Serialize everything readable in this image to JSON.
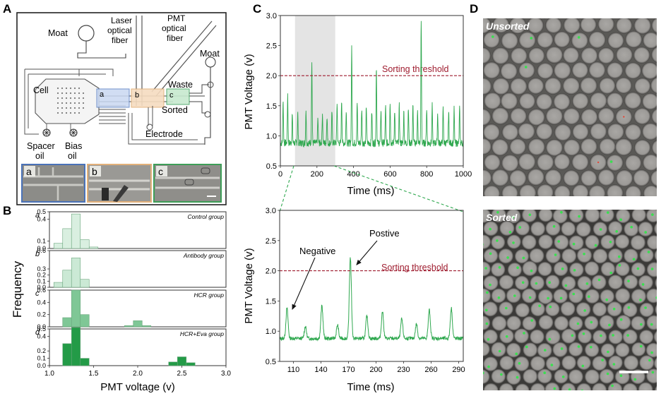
{
  "panel_letters": {
    "a": "A",
    "b": "B",
    "c": "C",
    "d": "D"
  },
  "panel_a": {
    "labels": {
      "moat_left": "Moat",
      "laser_1": "Laser",
      "laser_2": "optical",
      "laser_3": "fiber",
      "pmt_1": "PMT",
      "pmt_2": "optical",
      "pmt_3": "fiber",
      "moat_right": "Moat",
      "cell": "Cell",
      "waste": "Waste",
      "sorted": "Sorted",
      "electrode": "Electrode",
      "spacer_1": "Spacer",
      "spacer_2": "oil",
      "bias_1": "Bias",
      "bias_2": "oil",
      "region_a": "a",
      "region_b": "b",
      "region_c": "c"
    },
    "insets": [
      {
        "label": "a",
        "border_color": "#4a72b8"
      },
      {
        "label": "b",
        "border_color": "#e2b07a"
      },
      {
        "label": "c",
        "border_color": "#3e9e58"
      }
    ]
  },
  "panel_b": {
    "y_axis_label": "Frequency",
    "x_axis_label": "PMT voltage (v)",
    "x_ticks": [
      "1.0",
      "1.5",
      "2.0",
      "2.5",
      "3.0"
    ],
    "sub_letters": [
      "a",
      "b",
      "c",
      "d"
    ]
  },
  "panel_c": {
    "top_ylabel": "PMT Voltage (v)",
    "top_xlabel": "Time (ms)",
    "bottom_ylabel": "PMT Voltage (v)",
    "bottom_xlabel": "Time (ms)",
    "threshold_label": "Sorting threshold",
    "negative_label": "Negative",
    "positive_label": "Postive"
  },
  "panel_d": {
    "unsorted_label": "Unsorted",
    "sorted_label": "Sorted"
  },
  "chart_data": [
    {
      "type": "bar",
      "title": "Control group",
      "xlabel": "PMT voltage (v)",
      "ylabel": "Frequency",
      "xlim": [
        1.0,
        3.0
      ],
      "ylim": [
        0,
        0.5
      ],
      "yticks": [
        "0.0",
        "0.1",
        "0.4",
        "0.5"
      ],
      "bin_width": 0.1,
      "bins": [
        1.1,
        1.2,
        1.3,
        1.4,
        1.5
      ],
      "values": [
        0.07,
        0.27,
        0.47,
        0.12,
        0.02
      ],
      "color": "#d9efe0"
    },
    {
      "type": "bar",
      "title": "Antibody group",
      "xlabel": "PMT voltage (v)",
      "ylabel": "Frequency",
      "xlim": [
        1.0,
        3.0
      ],
      "ylim": [
        0,
        0.6
      ],
      "yticks": [
        "0.0",
        "0.1",
        "0.2",
        "0.3",
        "0.6"
      ],
      "bin_width": 0.1,
      "bins": [
        1.1,
        1.2,
        1.3,
        1.4
      ],
      "values": [
        0.08,
        0.28,
        0.48,
        0.13
      ],
      "color": "#cbe9d5"
    },
    {
      "type": "bar",
      "title": "HCR group",
      "xlabel": "PMT voltage (v)",
      "ylabel": "Frequency",
      "xlim": [
        1.0,
        3.0
      ],
      "ylim": [
        0,
        0.6
      ],
      "yticks": [
        "0.0",
        "0.2",
        "0.4",
        "0.6"
      ],
      "bin_width": 0.1,
      "bins": [
        1.2,
        1.3,
        1.4,
        1.9,
        2.0,
        2.1
      ],
      "values": [
        0.15,
        0.6,
        0.2,
        0.02,
        0.1,
        0.02
      ],
      "color": "#7fc796"
    },
    {
      "type": "bar",
      "title": "HCR+Eva group",
      "xlabel": "PMT voltage (v)",
      "ylabel": "Frequency",
      "xlim": [
        1.0,
        3.0
      ],
      "ylim": [
        0,
        0.5
      ],
      "yticks": [
        "0.0",
        "0.1",
        "0.2",
        "0.4",
        "0.5"
      ],
      "bin_width": 0.1,
      "bins": [
        1.2,
        1.3,
        1.4,
        2.4,
        2.5,
        2.6
      ],
      "values": [
        0.3,
        0.52,
        0.1,
        0.05,
        0.12,
        0.04
      ],
      "color": "#239b47"
    },
    {
      "type": "line",
      "title": "",
      "xlabel": "Time (ms)",
      "ylabel": "PMT Voltage (v)",
      "xlim": [
        0,
        1000
      ],
      "ylim": [
        0.5,
        3.0
      ],
      "xticks": [
        "0",
        "200",
        "400",
        "600",
        "800",
        "1000"
      ],
      "yticks": [
        "0.5",
        "1.0",
        "1.5",
        "2.0",
        "2.5",
        "3.0"
      ],
      "threshold": 2.0,
      "highlight_range": [
        80,
        300
      ],
      "baseline": 0.88,
      "peaks": [
        {
          "x": 15,
          "y": 1.6
        },
        {
          "x": 40,
          "y": 1.7
        },
        {
          "x": 65,
          "y": 1.35
        },
        {
          "x": 95,
          "y": 1.4
        },
        {
          "x": 140,
          "y": 1.45
        },
        {
          "x": 172,
          "y": 2.22
        },
        {
          "x": 205,
          "y": 1.3
        },
        {
          "x": 230,
          "y": 1.38
        },
        {
          "x": 255,
          "y": 1.35
        },
        {
          "x": 282,
          "y": 1.4
        },
        {
          "x": 310,
          "y": 1.55
        },
        {
          "x": 335,
          "y": 1.6
        },
        {
          "x": 360,
          "y": 1.45
        },
        {
          "x": 390,
          "y": 2.45
        },
        {
          "x": 420,
          "y": 1.55
        },
        {
          "x": 445,
          "y": 1.45
        },
        {
          "x": 470,
          "y": 1.5
        },
        {
          "x": 500,
          "y": 1.4
        },
        {
          "x": 525,
          "y": 2.15
        },
        {
          "x": 550,
          "y": 1.45
        },
        {
          "x": 575,
          "y": 1.5
        },
        {
          "x": 600,
          "y": 1.55
        },
        {
          "x": 625,
          "y": 1.45
        },
        {
          "x": 650,
          "y": 1.5
        },
        {
          "x": 675,
          "y": 1.4
        },
        {
          "x": 700,
          "y": 1.45
        },
        {
          "x": 725,
          "y": 1.5
        },
        {
          "x": 750,
          "y": 1.4
        },
        {
          "x": 770,
          "y": 2.92
        },
        {
          "x": 800,
          "y": 1.45
        },
        {
          "x": 830,
          "y": 1.5
        },
        {
          "x": 860,
          "y": 1.4
        },
        {
          "x": 890,
          "y": 1.45
        },
        {
          "x": 920,
          "y": 1.4
        },
        {
          "x": 950,
          "y": 1.45
        },
        {
          "x": 980,
          "y": 1.45
        }
      ],
      "color": "#2fa84f"
    },
    {
      "type": "line",
      "title": "",
      "xlabel": "Time (ms)",
      "ylabel": "PMT Voltage (v)",
      "xlim": [
        95,
        295
      ],
      "ylim": [
        0.5,
        3.0
      ],
      "xticks": [
        "110",
        "140",
        "170",
        "200",
        "230",
        "260",
        "290"
      ],
      "yticks": [
        "0.5",
        "1.0",
        "1.5",
        "2.0",
        "2.5",
        "3.0"
      ],
      "threshold": 2.0,
      "baseline": 0.88,
      "peaks": [
        {
          "x": 103,
          "y": 1.38
        },
        {
          "x": 123,
          "y": 1.08
        },
        {
          "x": 141,
          "y": 1.42
        },
        {
          "x": 158,
          "y": 1.1
        },
        {
          "x": 172,
          "y": 2.22
        },
        {
          "x": 190,
          "y": 1.25
        },
        {
          "x": 207,
          "y": 1.33
        },
        {
          "x": 228,
          "y": 1.2
        },
        {
          "x": 244,
          "y": 1.12
        },
        {
          "x": 258,
          "y": 1.35
        },
        {
          "x": 282,
          "y": 1.38
        }
      ],
      "color": "#2fa84f"
    }
  ]
}
